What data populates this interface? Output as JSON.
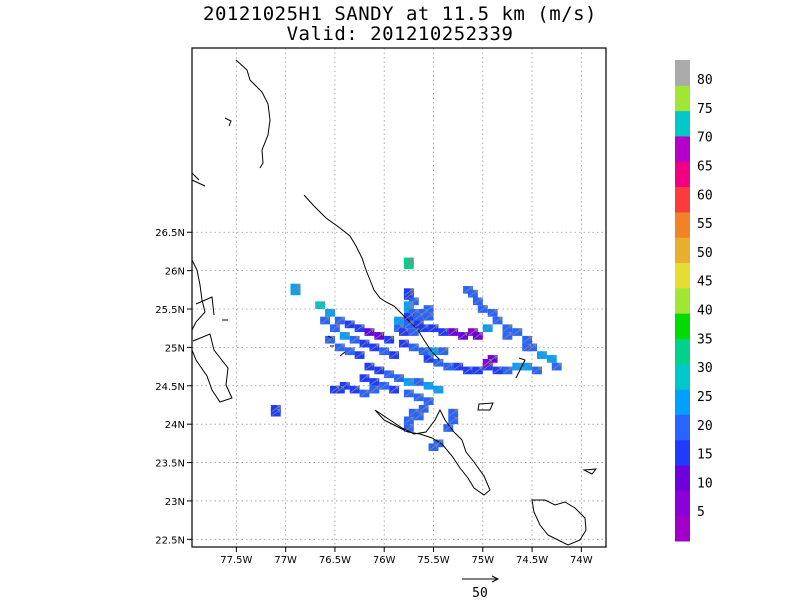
{
  "title": {
    "line1": "20121025H1 SANDY at 11.5 km (m/s)",
    "line2": "Valid: 201210252339"
  },
  "axes": {
    "lon_min": -77.95,
    "lon_max": -73.75,
    "lat_min": 22.4,
    "lat_max": 28.9,
    "lon_ticks": [
      -77.5,
      -77,
      -76.5,
      -76,
      -75.5,
      -75,
      -74.5,
      -74
    ],
    "lon_labels": [
      "77.5W",
      "77W",
      "76.5W",
      "76W",
      "75.5W",
      "75W",
      "74.5W",
      "74W"
    ],
    "lat_ticks": [
      22.5,
      23,
      23.5,
      24,
      24.5,
      25,
      25.5,
      26,
      26.5
    ],
    "lat_labels": [
      "22.5N",
      "23N",
      "23.5N",
      "24N",
      "24.5N",
      "25N",
      "25.5N",
      "26N",
      "26.5N"
    ],
    "grid": "dotted"
  },
  "colorbar": {
    "colors": [
      "#a000c8",
      "#8c00dc",
      "#6e00dc",
      "#1e3cff",
      "#2864ff",
      "#00a0ff",
      "#00c8c8",
      "#00d28c",
      "#00dc00",
      "#a0e632",
      "#e6dc32",
      "#e6af2d",
      "#f08228",
      "#fa3c3c",
      "#f00082",
      "#b400c8",
      "#00c8c8",
      "#a0e632",
      "#aaaaaa"
    ],
    "labels": [
      "5",
      "10",
      "15",
      "20",
      "25",
      "30",
      "35",
      "40",
      "45",
      "50",
      "55",
      "60",
      "65",
      "70",
      "75",
      "80"
    ]
  },
  "reference_vector": {
    "label": "50"
  },
  "chart_data": {
    "type": "heatmap",
    "variable": "wind speed",
    "units": "m/s",
    "cell_deg": 0.05,
    "cells": [
      [
        -75.75,
        26.12,
        7
      ],
      [
        -75.75,
        26.07,
        7
      ],
      [
        -76.9,
        25.78,
        5
      ],
      [
        -76.9,
        25.73,
        5
      ],
      [
        -75.75,
        25.72,
        3
      ],
      [
        -75.75,
        25.67,
        3
      ],
      [
        -75.7,
        25.6,
        4
      ],
      [
        -75.75,
        25.55,
        5
      ],
      [
        -75.75,
        25.5,
        5
      ],
      [
        -75.7,
        25.45,
        4
      ],
      [
        -75.75,
        25.4,
        3
      ],
      [
        -75.65,
        25.4,
        4
      ],
      [
        -75.6,
        25.45,
        4
      ],
      [
        -75.55,
        25.5,
        4
      ],
      [
        -75.55,
        25.4,
        4
      ],
      [
        -75.85,
        25.35,
        5
      ],
      [
        -75.75,
        25.3,
        4
      ],
      [
        -75.65,
        25.3,
        3
      ],
      [
        -75.85,
        25.25,
        4
      ],
      [
        -75.8,
        25.2,
        3
      ],
      [
        -75.7,
        25.2,
        4
      ],
      [
        -75.6,
        25.25,
        3
      ],
      [
        -75.5,
        25.25,
        3
      ],
      [
        -75.4,
        25.2,
        3
      ],
      [
        -75.3,
        25.2,
        2
      ],
      [
        -75.2,
        25.15,
        2
      ],
      [
        -75.1,
        25.2,
        1
      ],
      [
        -75.05,
        25.15,
        2
      ],
      [
        -76.65,
        25.55,
        6
      ],
      [
        -76.55,
        25.45,
        5
      ],
      [
        -76.45,
        25.35,
        4
      ],
      [
        -76.35,
        25.3,
        3
      ],
      [
        -76.25,
        25.25,
        3
      ],
      [
        -76.15,
        25.2,
        2
      ],
      [
        -76.05,
        25.15,
        2
      ],
      [
        -75.95,
        25.1,
        3
      ],
      [
        -76.6,
        25.35,
        4
      ],
      [
        -76.5,
        25.25,
        4
      ],
      [
        -76.4,
        25.15,
        5
      ],
      [
        -76.3,
        25.1,
        4
      ],
      [
        -76.2,
        25.05,
        3
      ],
      [
        -76.1,
        25.0,
        3
      ],
      [
        -76.0,
        24.95,
        4
      ],
      [
        -75.9,
        24.9,
        3
      ],
      [
        -76.55,
        25.1,
        4
      ],
      [
        -76.45,
        25.0,
        4
      ],
      [
        -76.35,
        24.95,
        4
      ],
      [
        -76.25,
        24.9,
        3
      ],
      [
        -75.8,
        25.05,
        3
      ],
      [
        -75.7,
        25.0,
        4
      ],
      [
        -75.6,
        24.95,
        4
      ],
      [
        -75.5,
        24.95,
        5
      ],
      [
        -75.4,
        24.95,
        4
      ],
      [
        -75.55,
        24.85,
        3
      ],
      [
        -75.45,
        24.8,
        4
      ],
      [
        -75.35,
        24.75,
        4
      ],
      [
        -75.25,
        24.75,
        3
      ],
      [
        -75.15,
        24.7,
        3
      ],
      [
        -75.05,
        24.7,
        3
      ],
      [
        -74.95,
        24.75,
        3
      ],
      [
        -74.85,
        24.7,
        3
      ],
      [
        -74.75,
        24.7,
        4
      ],
      [
        -74.65,
        24.75,
        5
      ],
      [
        -74.55,
        24.75,
        5
      ],
      [
        -74.45,
        24.7,
        4
      ],
      [
        -74.95,
        24.8,
        1
      ],
      [
        -74.9,
        24.85,
        2
      ],
      [
        -76.15,
        24.75,
        3
      ],
      [
        -76.05,
        24.7,
        3
      ],
      [
        -75.95,
        24.65,
        4
      ],
      [
        -75.85,
        24.6,
        4
      ],
      [
        -75.75,
        24.55,
        5
      ],
      [
        -75.65,
        24.55,
        4
      ],
      [
        -75.55,
        24.5,
        5
      ],
      [
        -75.45,
        24.45,
        5
      ],
      [
        -76.2,
        24.6,
        3
      ],
      [
        -76.1,
        24.55,
        3
      ],
      [
        -76.0,
        24.5,
        4
      ],
      [
        -75.9,
        24.45,
        3
      ],
      [
        -76.4,
        24.5,
        3
      ],
      [
        -76.3,
        24.45,
        3
      ],
      [
        -76.2,
        24.4,
        4
      ],
      [
        -76.1,
        24.45,
        4
      ],
      [
        -75.75,
        24.4,
        4
      ],
      [
        -75.65,
        24.35,
        4
      ],
      [
        -75.55,
        24.3,
        4
      ],
      [
        -75.6,
        24.2,
        4
      ],
      [
        -75.7,
        24.15,
        4
      ],
      [
        -75.75,
        24.05,
        4
      ],
      [
        -75.75,
        23.95,
        4
      ],
      [
        -75.65,
        24.1,
        4
      ],
      [
        -75.3,
        24.15,
        4
      ],
      [
        -75.3,
        24.05,
        4
      ],
      [
        -75.35,
        23.95,
        4
      ],
      [
        -75.5,
        23.7,
        4
      ],
      [
        -75.45,
        23.75,
        4
      ],
      [
        -77.1,
        24.2,
        3
      ],
      [
        -77.1,
        24.15,
        3
      ],
      [
        -76.45,
        24.45,
        3
      ],
      [
        -76.5,
        24.45,
        3
      ],
      [
        -75.15,
        25.75,
        4
      ],
      [
        -75.1,
        25.7,
        4
      ],
      [
        -75.05,
        25.6,
        4
      ],
      [
        -75.0,
        25.5,
        4
      ],
      [
        -74.9,
        25.45,
        4
      ],
      [
        -74.85,
        25.35,
        4
      ],
      [
        -74.75,
        25.25,
        4
      ],
      [
        -74.65,
        25.2,
        4
      ],
      [
        -74.55,
        25.1,
        4
      ],
      [
        -74.5,
        25.0,
        4
      ],
      [
        -74.4,
        24.9,
        5
      ],
      [
        -74.3,
        24.85,
        5
      ],
      [
        -74.25,
        24.75,
        4
      ],
      [
        -74.95,
        25.25,
        5
      ],
      [
        -74.75,
        25.15,
        4
      ],
      [
        -74.55,
        25.0,
        4
      ]
    ]
  }
}
